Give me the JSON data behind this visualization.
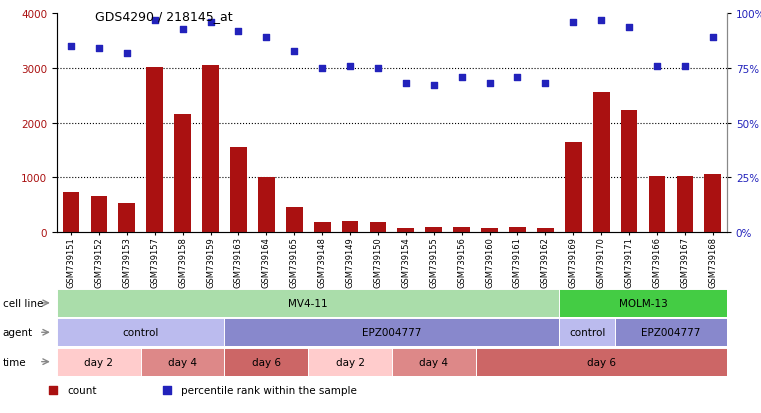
{
  "title": "GDS4290 / 218145_at",
  "samples": [
    "GSM739151",
    "GSM739152",
    "GSM739153",
    "GSM739157",
    "GSM739158",
    "GSM739159",
    "GSM739163",
    "GSM739164",
    "GSM739165",
    "GSM739148",
    "GSM739149",
    "GSM739150",
    "GSM739154",
    "GSM739155",
    "GSM739156",
    "GSM739160",
    "GSM739161",
    "GSM739162",
    "GSM739169",
    "GSM739170",
    "GSM739171",
    "GSM739166",
    "GSM739167",
    "GSM739168"
  ],
  "counts": [
    730,
    650,
    530,
    3020,
    2150,
    3050,
    1560,
    1010,
    450,
    170,
    195,
    175,
    75,
    80,
    80,
    75,
    90,
    70,
    1640,
    2560,
    2230,
    1020,
    1020,
    1060
  ],
  "percentile_ranks": [
    85,
    84,
    82,
    97,
    93,
    96,
    92,
    89,
    83,
    75,
    76,
    75,
    68,
    67,
    71,
    68,
    71,
    68,
    96,
    97,
    94,
    76,
    76,
    89
  ],
  "bar_color": "#aa1111",
  "dot_color": "#2222bb",
  "ylim_left": [
    0,
    4000
  ],
  "ylim_right": [
    0,
    100
  ],
  "yticks_left": [
    0,
    1000,
    2000,
    3000,
    4000
  ],
  "yticks_right": [
    0,
    25,
    50,
    75,
    100
  ],
  "cell_line_groups": [
    {
      "label": "MV4-11",
      "start": 0,
      "end": 18,
      "color": "#aaddaa"
    },
    {
      "label": "MOLM-13",
      "start": 18,
      "end": 24,
      "color": "#44cc44"
    }
  ],
  "agent_groups": [
    {
      "label": "control",
      "start": 0,
      "end": 6,
      "color": "#bbbbee"
    },
    {
      "label": "EPZ004777",
      "start": 6,
      "end": 18,
      "color": "#8888cc"
    },
    {
      "label": "control",
      "start": 18,
      "end": 20,
      "color": "#bbbbee"
    },
    {
      "label": "EPZ004777",
      "start": 20,
      "end": 24,
      "color": "#8888cc"
    }
  ],
  "time_groups": [
    {
      "label": "day 2",
      "start": 0,
      "end": 3,
      "color": "#ffcccc"
    },
    {
      "label": "day 4",
      "start": 3,
      "end": 6,
      "color": "#dd8888"
    },
    {
      "label": "day 6",
      "start": 6,
      "end": 9,
      "color": "#cc6666"
    },
    {
      "label": "day 2",
      "start": 9,
      "end": 12,
      "color": "#ffcccc"
    },
    {
      "label": "day 4",
      "start": 12,
      "end": 15,
      "color": "#dd8888"
    },
    {
      "label": "day 6",
      "start": 15,
      "end": 24,
      "color": "#cc6666"
    }
  ],
  "row_labels": [
    "cell line",
    "agent",
    "time"
  ],
  "legend_labels": [
    "count",
    "percentile rank within the sample"
  ],
  "legend_colors": [
    "#aa1111",
    "#2222bb"
  ],
  "background_color": "#ffffff",
  "grid_color": "#555555"
}
